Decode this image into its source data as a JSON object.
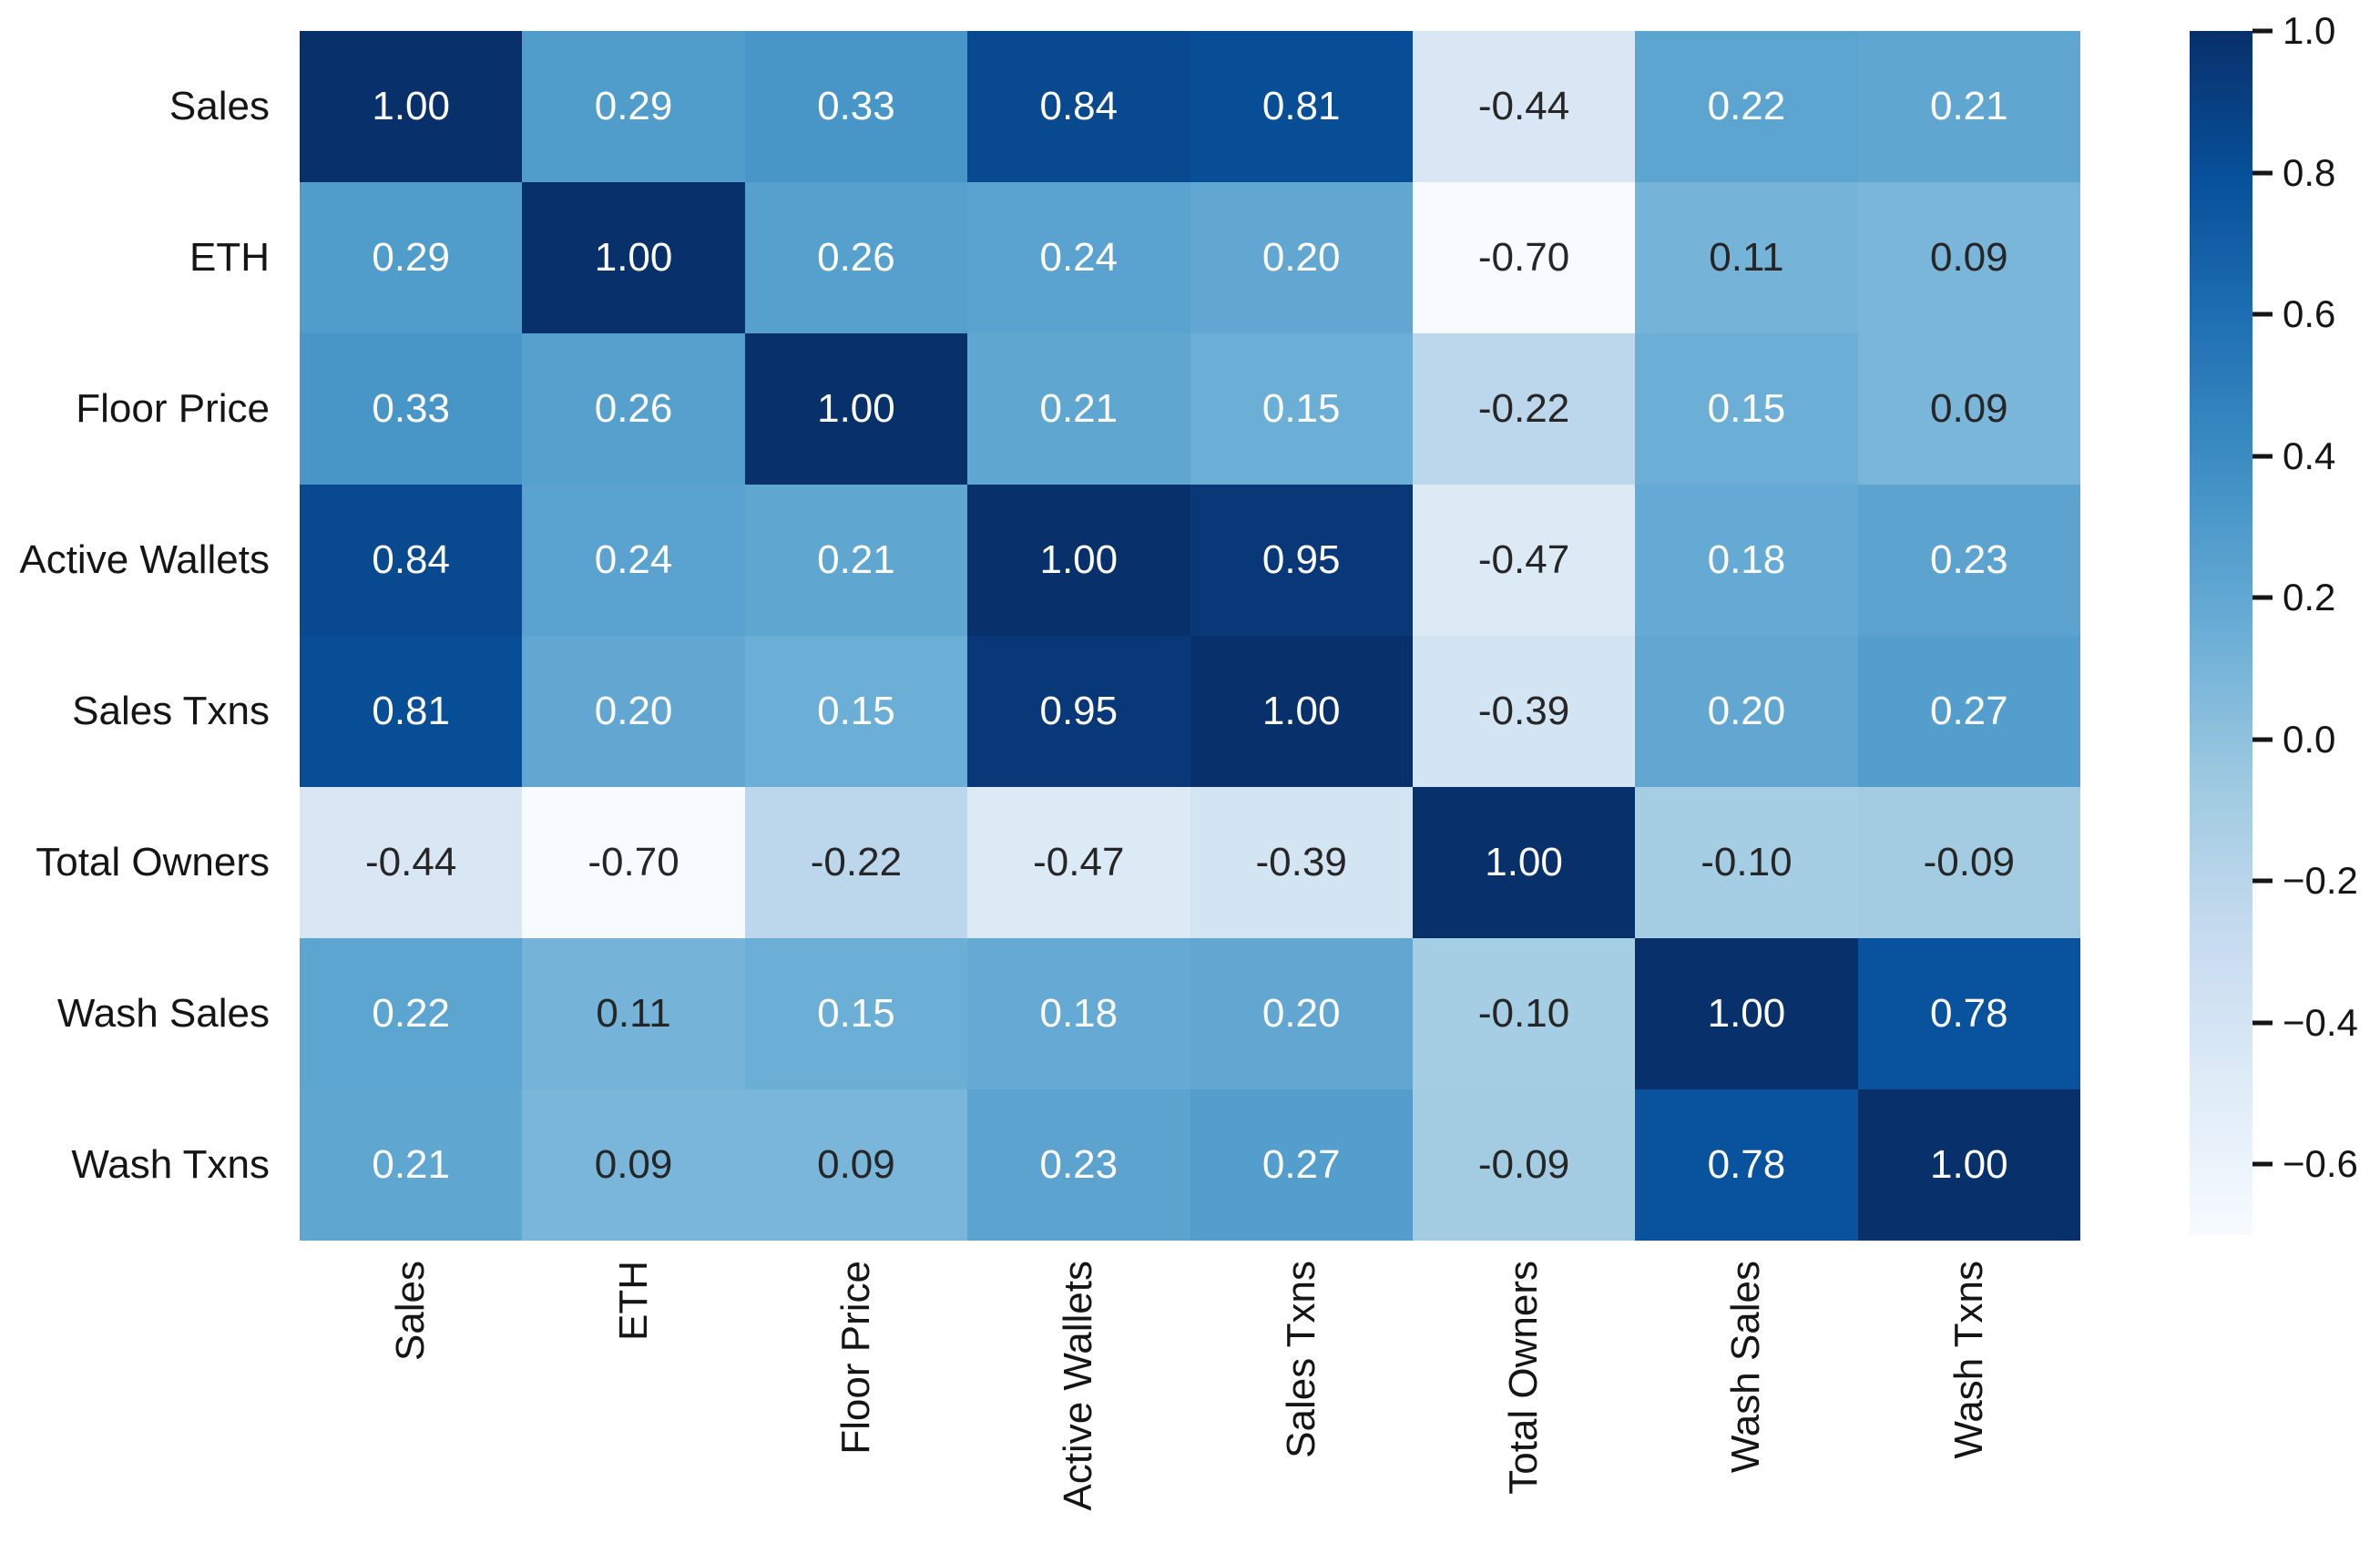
{
  "chart_data": {
    "type": "heatmap",
    "title": "",
    "xlabel": "",
    "ylabel": "",
    "categories": [
      "Sales",
      "ETH",
      "Floor Price",
      "Active Wallets",
      "Sales Txns",
      "Total Owners",
      "Wash Sales",
      "Wash Txns"
    ],
    "matrix": [
      [
        1.0,
        0.29,
        0.33,
        0.84,
        0.81,
        -0.44,
        0.22,
        0.21
      ],
      [
        0.29,
        1.0,
        0.26,
        0.24,
        0.2,
        -0.7,
        0.11,
        0.09
      ],
      [
        0.33,
        0.26,
        1.0,
        0.21,
        0.15,
        -0.22,
        0.15,
        0.09
      ],
      [
        0.84,
        0.24,
        0.21,
        1.0,
        0.95,
        -0.47,
        0.18,
        0.23
      ],
      [
        0.81,
        0.2,
        0.15,
        0.95,
        1.0,
        -0.39,
        0.2,
        0.27
      ],
      [
        -0.44,
        -0.7,
        -0.22,
        -0.47,
        -0.39,
        1.0,
        -0.1,
        -0.09
      ],
      [
        0.22,
        0.11,
        0.15,
        0.18,
        0.2,
        -0.1,
        1.0,
        0.78
      ],
      [
        0.21,
        0.09,
        0.09,
        0.23,
        0.27,
        -0.09,
        0.78,
        1.0
      ]
    ],
    "value_format_decimals": 2,
    "vmin": -0.7,
    "vmax": 1.0,
    "grid": "off",
    "legend_position": "colorbar-right",
    "colorbar_ticks": [
      1.0,
      0.8,
      0.6,
      0.4,
      0.2,
      0.0,
      -0.2,
      -0.4,
      -0.6
    ],
    "colormap_name": "Blues",
    "colormap_stops": [
      {
        "t": 0.0,
        "color": "#f7fbff"
      },
      {
        "t": 0.125,
        "color": "#deebf7"
      },
      {
        "t": 0.25,
        "color": "#c6dbef"
      },
      {
        "t": 0.375,
        "color": "#9ecae1"
      },
      {
        "t": 0.5,
        "color": "#6baed6"
      },
      {
        "t": 0.625,
        "color": "#4292c6"
      },
      {
        "t": 0.75,
        "color": "#2171b5"
      },
      {
        "t": 0.875,
        "color": "#08519c"
      },
      {
        "t": 1.0,
        "color": "#08306b"
      }
    ],
    "annotation_text_light": "#ffffff",
    "annotation_text_dark": "#262626",
    "axis_text_color": "#151515",
    "luminance_threshold": 0.408
  }
}
